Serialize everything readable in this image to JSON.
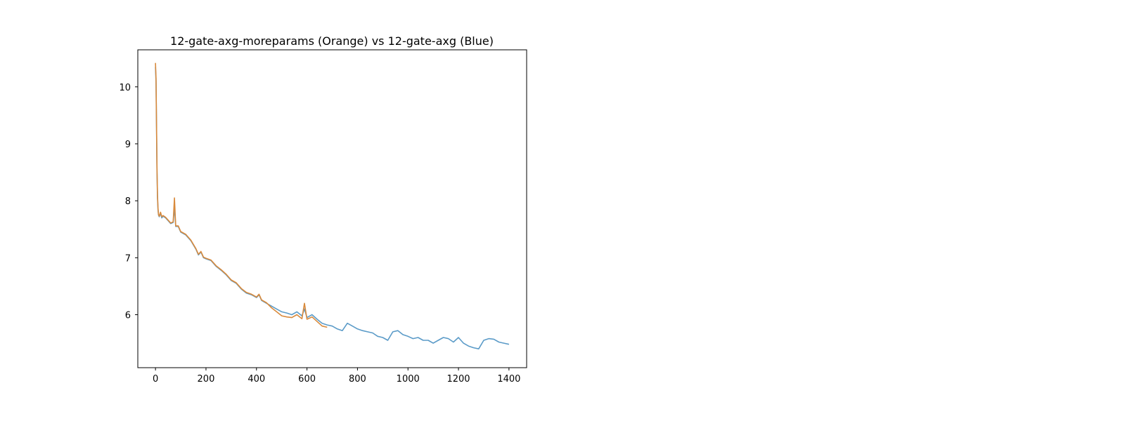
{
  "chart_data": {
    "type": "line",
    "title": "12-gate-axg-moreparams (Orange) vs 12-gate-axg (Blue)",
    "xlabel": "",
    "ylabel": "",
    "xlim": [
      -70,
      1470
    ],
    "ylim": [
      5.07,
      10.65
    ],
    "xticks": [
      0,
      200,
      400,
      600,
      800,
      1000,
      1200,
      1400
    ],
    "yticks": [
      6,
      7,
      8,
      9,
      10
    ],
    "grid": false,
    "legend": "none",
    "series": [
      {
        "color": "#5b9bc8",
        "x": [
          0,
          2,
          4,
          6,
          8,
          10,
          12,
          15,
          20,
          25,
          30,
          40,
          50,
          60,
          70,
          75,
          80,
          90,
          100,
          120,
          140,
          160,
          170,
          180,
          190,
          200,
          220,
          240,
          260,
          280,
          300,
          320,
          340,
          360,
          380,
          400,
          410,
          420,
          440,
          460,
          480,
          500,
          520,
          540,
          560,
          580,
          590,
          600,
          620,
          640,
          660,
          680,
          700,
          720,
          740,
          760,
          780,
          800,
          820,
          840,
          860,
          880,
          900,
          920,
          940,
          960,
          980,
          1000,
          1020,
          1040,
          1060,
          1080,
          1100,
          1120,
          1140,
          1160,
          1180,
          1200,
          1220,
          1240,
          1260,
          1280,
          1300,
          1320,
          1340,
          1360,
          1380,
          1400
        ],
        "y": [
          10.35,
          10.1,
          9.3,
          8.5,
          8.05,
          7.85,
          7.75,
          7.72,
          7.78,
          7.7,
          7.73,
          7.7,
          7.65,
          7.6,
          7.62,
          7.9,
          7.55,
          7.55,
          7.45,
          7.4,
          7.3,
          7.15,
          7.05,
          7.1,
          7.0,
          6.98,
          6.95,
          6.85,
          6.78,
          6.7,
          6.6,
          6.55,
          6.45,
          6.38,
          6.35,
          6.3,
          6.35,
          6.25,
          6.2,
          6.15,
          6.1,
          6.05,
          6.03,
          6.0,
          6.05,
          5.98,
          6.1,
          5.95,
          6.0,
          5.92,
          5.85,
          5.82,
          5.8,
          5.75,
          5.72,
          5.85,
          5.8,
          5.75,
          5.72,
          5.7,
          5.68,
          5.62,
          5.6,
          5.55,
          5.7,
          5.72,
          5.65,
          5.62,
          5.58,
          5.6,
          5.55,
          5.55,
          5.5,
          5.55,
          5.6,
          5.58,
          5.52,
          5.6,
          5.5,
          5.45,
          5.42,
          5.4,
          5.55,
          5.58,
          5.57,
          5.52,
          5.5,
          5.48
        ]
      },
      {
        "color": "#d98a3c",
        "x": [
          0,
          2,
          4,
          6,
          8,
          10,
          12,
          15,
          20,
          25,
          30,
          40,
          50,
          60,
          70,
          75,
          80,
          90,
          100,
          120,
          140,
          160,
          170,
          180,
          190,
          200,
          220,
          240,
          260,
          280,
          300,
          320,
          340,
          360,
          380,
          400,
          410,
          420,
          440,
          460,
          480,
          500,
          520,
          540,
          560,
          580,
          590,
          600,
          620,
          640,
          660,
          680
        ],
        "y": [
          10.42,
          10.15,
          9.35,
          8.55,
          8.1,
          7.88,
          7.76,
          7.73,
          7.8,
          7.72,
          7.74,
          7.71,
          7.66,
          7.61,
          7.63,
          8.05,
          7.56,
          7.56,
          7.46,
          7.41,
          7.31,
          7.16,
          7.06,
          7.11,
          7.01,
          6.99,
          6.96,
          6.86,
          6.79,
          6.71,
          6.61,
          6.56,
          6.46,
          6.39,
          6.36,
          6.31,
          6.36,
          6.26,
          6.21,
          6.12,
          6.05,
          5.98,
          5.96,
          5.95,
          6.0,
          5.93,
          6.2,
          5.92,
          5.96,
          5.88,
          5.8,
          5.78
        ]
      }
    ]
  }
}
